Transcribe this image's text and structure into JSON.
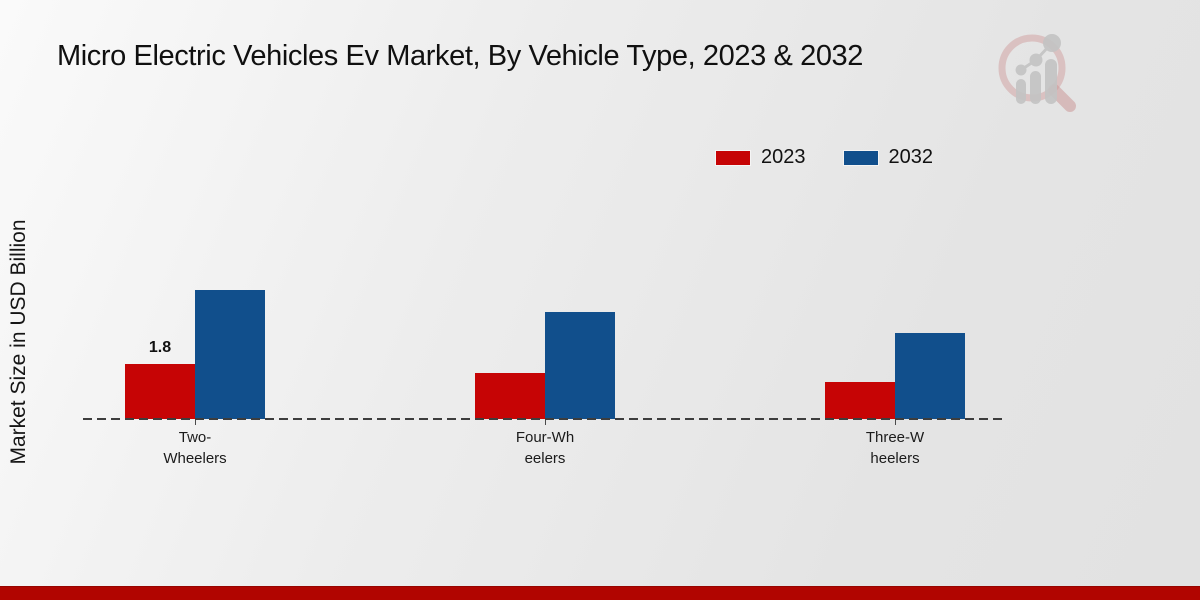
{
  "title": "Micro Electric Vehicles Ev Market, By Vehicle Type, 2023 & 2032",
  "y_axis_label": "Market Size in USD Billion",
  "legend": {
    "items": [
      {
        "label": "2023",
        "color": "#c60405"
      },
      {
        "label": "2032",
        "color": "#114f8c"
      }
    ]
  },
  "colors": {
    "series_2023": "#c60405",
    "series_2032": "#114f8c",
    "footer_bar": "#b10500",
    "axis_dash": "#3d3d3d",
    "background": "#e9e9e9"
  },
  "logo": {
    "name": "market-research-magnifier-logo"
  },
  "chart_data": {
    "type": "bar",
    "title": "Micro Electric Vehicles Ev Market, By Vehicle Type, 2023 & 2032",
    "xlabel": "",
    "ylabel": "Market Size in USD Billion",
    "categories": [
      "Two-Wheelers",
      "Four-Wheelers",
      "Three-Wheelers"
    ],
    "category_label_lines": [
      [
        "Two-",
        "Wheelers"
      ],
      [
        "Four-Wh",
        "eelers"
      ],
      [
        "Three-W",
        "heelers"
      ]
    ],
    "series": [
      {
        "name": "2023",
        "color": "#c60405",
        "values": [
          1.8,
          1.5,
          1.2
        ]
      },
      {
        "name": "2032",
        "color": "#114f8c",
        "values": [
          4.2,
          3.5,
          2.8
        ]
      }
    ],
    "data_labels": [
      {
        "series": "2023",
        "category": "Two-Wheelers",
        "text": "1.8"
      }
    ],
    "ylim": [
      0,
      4.6
    ],
    "grid": false,
    "legend_position": "top-right",
    "baseline_style": "dashed"
  }
}
